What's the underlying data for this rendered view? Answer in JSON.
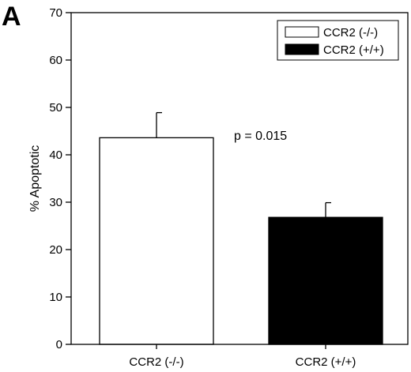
{
  "panel_label": "A",
  "chart_data": {
    "type": "bar",
    "categories": [
      "CCR2 (-/-)",
      "CCR2 (+/+)"
    ],
    "values": [
      43.6,
      26.8
    ],
    "error_upper": [
      48.9,
      29.9
    ],
    "bar_colors": [
      "#ffffff",
      "#000000"
    ],
    "title": "",
    "xlabel": "",
    "ylabel": "% Apoptotic",
    "ylim": [
      0,
      70
    ],
    "yticks": [
      0,
      10,
      20,
      30,
      40,
      50,
      60,
      70
    ],
    "grid": false,
    "annotation": "p = 0.015",
    "legend": {
      "position": "top-right",
      "entries": [
        {
          "label": "CCR2 (-/-)",
          "color": "#ffffff"
        },
        {
          "label": "CCR2 (+/+)",
          "color": "#000000"
        }
      ]
    }
  }
}
